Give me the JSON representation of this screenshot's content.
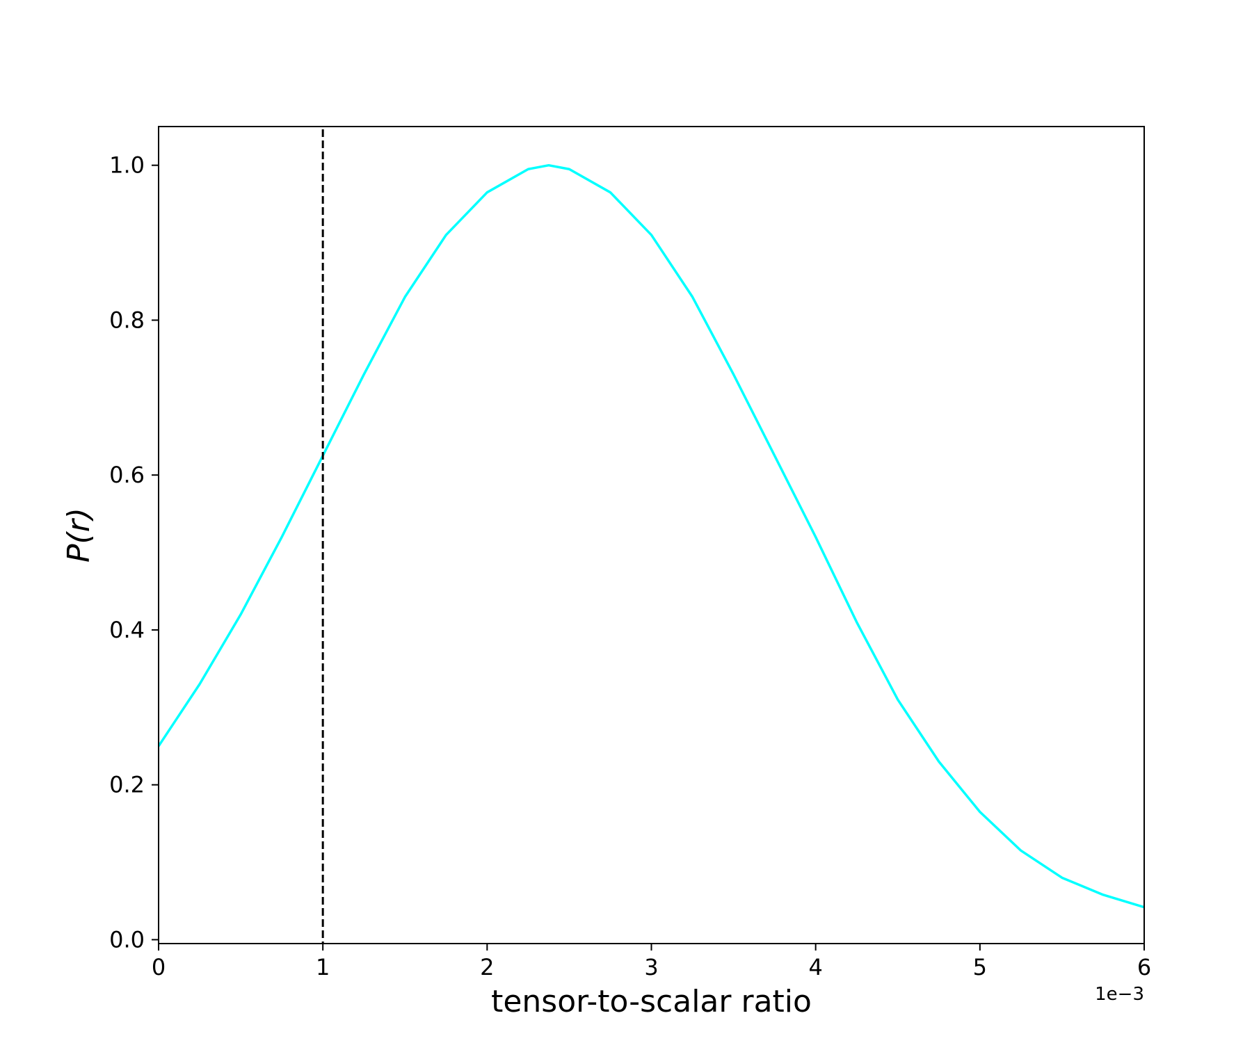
{
  "chart_data": {
    "type": "line",
    "title": "",
    "xlabel": "tensor-to-scalar ratio",
    "ylabel": "P(r)",
    "x_offset_label": "1e−3",
    "xlim": [
      0,
      6
    ],
    "ylim": [
      -0.005,
      1.05
    ],
    "x_tick_values": [
      0,
      1,
      2,
      3,
      4,
      5,
      6
    ],
    "x_tick_labels": [
      "0",
      "1",
      "2",
      "3",
      "4",
      "5",
      "6"
    ],
    "y_tick_values": [
      0.0,
      0.2,
      0.4,
      0.6,
      0.8,
      1.0
    ],
    "y_tick_labels": [
      "0.0",
      "0.2",
      "0.4",
      "0.6",
      "0.8",
      "1.0"
    ],
    "grid": false,
    "legend": "none",
    "series": [
      {
        "color": "#00ffff",
        "x": [
          0.0,
          0.25,
          0.5,
          0.75,
          1.0,
          1.25,
          1.5,
          1.75,
          2.0,
          2.25,
          2.375,
          2.5,
          2.75,
          3.0,
          3.25,
          3.5,
          3.75,
          4.0,
          4.25,
          4.5,
          4.75,
          5.0,
          5.25,
          5.5,
          5.75,
          6.0
        ],
        "y": [
          0.25,
          0.33,
          0.42,
          0.52,
          0.625,
          0.73,
          0.83,
          0.91,
          0.965,
          0.995,
          1.0,
          0.995,
          0.965,
          0.91,
          0.83,
          0.73,
          0.625,
          0.52,
          0.41,
          0.31,
          0.23,
          0.165,
          0.115,
          0.08,
          0.058,
          0.042
        ]
      }
    ],
    "vertical_lines": [
      {
        "x": 1.0,
        "color": "#000000",
        "style": "dashed"
      }
    ]
  }
}
